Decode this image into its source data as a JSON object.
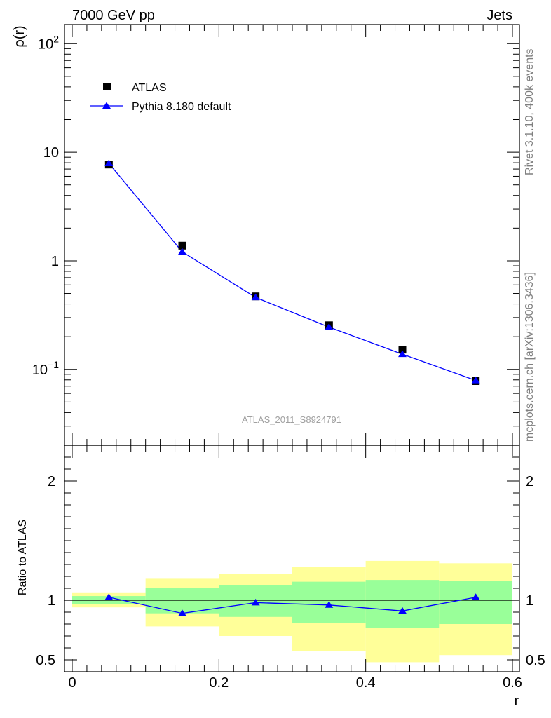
{
  "header": {
    "left_title": "7000 GeV pp",
    "right_title": "Jets"
  },
  "side_labels": {
    "rivet": "Rivet 3.1.10,  400k events",
    "mcplots": "mcplots.cern.ch [arXiv:1306.3436]"
  },
  "watermark": "ATLAS_2011_S8924791",
  "legend": {
    "data_label": "ATLAS",
    "mc_label": "Pythia 8.180 default"
  },
  "colors": {
    "data": "#000000",
    "mc": "#0000ff",
    "band_inner": "#99ff99",
    "band_outer": "#ffff99"
  },
  "chart_data": {
    "type": "scatter",
    "title": "7000 GeV pp Jets",
    "xlabel": "r",
    "ylabel": "ρ(r)",
    "ratio_ylabel": "Ratio to ATLAS",
    "xlim": [
      0,
      0.6
    ],
    "ylim_log": [
      0.02,
      150
    ],
    "ratio_ylim": [
      0.4,
      2.3
    ],
    "x_ticks": [
      "0",
      "0.2",
      "0.4",
      "0.6"
    ],
    "y_ticks": [
      "10^-1",
      "1",
      "10",
      "10^2"
    ],
    "ratio_ticks": [
      "0.5",
      "1",
      "2"
    ],
    "bins": [
      [
        0.0,
        0.1
      ],
      [
        0.1,
        0.2
      ],
      [
        0.2,
        0.3
      ],
      [
        0.3,
        0.4
      ],
      [
        0.4,
        0.5
      ],
      [
        0.5,
        0.6
      ]
    ],
    "x": [
      0.05,
      0.15,
      0.25,
      0.35,
      0.45,
      0.55
    ],
    "series": [
      {
        "name": "ATLAS",
        "values": [
          7.7,
          1.38,
          0.47,
          0.255,
          0.152,
          0.078
        ]
      },
      {
        "name": "Pythia 8.180 default",
        "values": [
          7.9,
          1.21,
          0.46,
          0.245,
          0.138,
          0.079
        ]
      }
    ],
    "ratio": [
      1.025,
      0.89,
      0.98,
      0.96,
      0.91,
      1.025
    ],
    "band_inner": [
      [
        0.965,
        1.035
      ],
      [
        0.89,
        1.1
      ],
      [
        0.86,
        1.125
      ],
      [
        0.81,
        1.155
      ],
      [
        0.77,
        1.17
      ],
      [
        0.8,
        1.16
      ]
    ],
    "band_outer": [
      [
        0.94,
        1.06
      ],
      [
        0.78,
        1.18
      ],
      [
        0.7,
        1.22
      ],
      [
        0.575,
        1.28
      ],
      [
        0.48,
        1.33
      ],
      [
        0.54,
        1.31
      ]
    ]
  }
}
